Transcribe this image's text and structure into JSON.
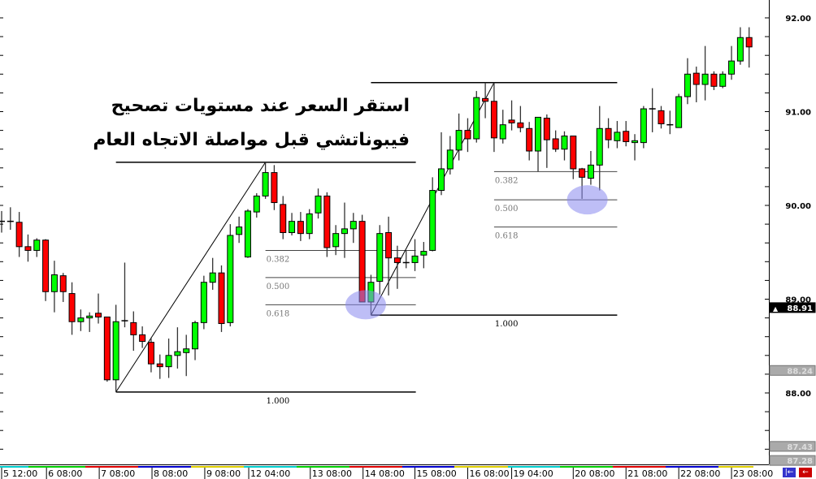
{
  "annotation": {
    "line1": "استقر السعر عند مستويات تصحيح",
    "line2": "فيبوناتشي قبل مواصلة الاتجاه العام"
  },
  "colors": {
    "bull": "#00ff00",
    "bear": "#ff0000",
    "highlight": "#8888ee",
    "day_separators": [
      "#00cccc",
      "#00cc00",
      "#dd0000",
      "#0000cc",
      "#ddcc00"
    ]
  },
  "buttons": [
    {
      "name": "scroll-left-button",
      "icon": "arrow-left-bar-icon",
      "color": "#3333cc"
    },
    {
      "name": "scroll-end-button",
      "icon": "arrow-left-icon",
      "color": "#cc0000"
    }
  ],
  "chart_data": {
    "type": "candlestick",
    "ohlc_order": [
      "open",
      "high",
      "low",
      "close"
    ],
    "candles": [
      [
        89.83,
        89.94,
        89.71,
        89.83
      ],
      [
        89.83,
        89.98,
        89.74,
        89.83
      ],
      [
        89.82,
        89.93,
        89.45,
        89.56
      ],
      [
        89.56,
        89.69,
        89.4,
        89.52
      ],
      [
        89.52,
        89.65,
        89.45,
        89.63
      ],
      [
        89.63,
        89.64,
        88.98,
        89.08
      ],
      [
        89.08,
        89.41,
        88.86,
        89.26
      ],
      [
        89.25,
        89.28,
        88.97,
        89.08
      ],
      [
        89.06,
        89.18,
        88.62,
        88.76
      ],
      [
        88.76,
        88.89,
        88.66,
        88.8
      ],
      [
        88.8,
        88.86,
        88.65,
        88.82
      ],
      [
        88.85,
        89.06,
        88.74,
        88.81
      ],
      [
        88.81,
        88.81,
        88.12,
        88.14
      ],
      [
        88.14,
        88.94,
        88.01,
        88.76
      ],
      [
        88.77,
        89.39,
        88.7,
        88.77
      ],
      [
        88.75,
        88.87,
        88.45,
        88.62
      ],
      [
        88.62,
        88.71,
        88.48,
        88.55
      ],
      [
        88.54,
        88.59,
        88.22,
        88.31
      ],
      [
        88.31,
        88.41,
        88.15,
        88.28
      ],
      [
        88.28,
        88.58,
        88.16,
        88.4
      ],
      [
        88.4,
        88.7,
        88.26,
        88.44
      ],
      [
        88.43,
        88.62,
        88.18,
        88.47
      ],
      [
        88.47,
        88.77,
        88.35,
        88.75
      ],
      [
        88.75,
        89.25,
        88.68,
        89.18
      ],
      [
        89.18,
        89.44,
        89.1,
        89.28
      ],
      [
        89.28,
        89.36,
        88.65,
        88.74
      ],
      [
        88.75,
        89.8,
        88.71,
        89.68
      ],
      [
        89.69,
        89.88,
        89.6,
        89.77
      ],
      [
        89.45,
        89.96,
        89.44,
        89.94
      ],
      [
        89.93,
        90.13,
        89.87,
        90.1
      ],
      [
        90.1,
        90.46,
        90.07,
        90.35
      ],
      [
        90.35,
        90.43,
        89.95,
        90.03
      ],
      [
        90.01,
        90.1,
        89.64,
        89.71
      ],
      [
        89.71,
        89.92,
        89.68,
        89.83
      ],
      [
        89.83,
        89.93,
        89.62,
        89.7
      ],
      [
        89.7,
        89.96,
        89.64,
        89.91
      ],
      [
        89.92,
        90.18,
        89.86,
        90.1
      ],
      [
        90.1,
        90.14,
        89.45,
        89.55
      ],
      [
        89.56,
        89.79,
        89.47,
        89.7
      ],
      [
        89.7,
        90.03,
        89.44,
        89.75
      ],
      [
        89.75,
        89.92,
        89.6,
        89.83
      ],
      [
        89.83,
        89.9,
        88.97,
        88.97
      ],
      [
        88.97,
        89.26,
        88.83,
        89.18
      ],
      [
        89.19,
        89.79,
        89.05,
        89.7
      ],
      [
        89.71,
        89.88,
        89.04,
        89.44
      ],
      [
        89.44,
        89.57,
        89.11,
        89.39
      ],
      [
        89.39,
        89.52,
        89.33,
        89.39
      ],
      [
        89.39,
        89.64,
        89.3,
        89.46
      ],
      [
        89.47,
        89.61,
        89.33,
        89.51
      ],
      [
        89.52,
        90.3,
        89.51,
        90.16
      ],
      [
        90.16,
        90.78,
        90.11,
        90.39
      ],
      [
        90.39,
        90.74,
        90.33,
        90.59
      ],
      [
        90.59,
        90.98,
        90.48,
        90.8
      ],
      [
        90.8,
        90.93,
        90.57,
        90.71
      ],
      [
        90.71,
        91.22,
        90.67,
        91.15
      ],
      [
        91.14,
        91.31,
        90.93,
        91.11
      ],
      [
        91.11,
        91.31,
        90.57,
        90.72
      ],
      [
        90.71,
        91.02,
        90.66,
        90.86
      ],
      [
        90.91,
        91.12,
        90.8,
        90.88
      ],
      [
        90.88,
        91.06,
        90.78,
        90.83
      ],
      [
        90.82,
        90.89,
        90.48,
        90.58
      ],
      [
        90.58,
        90.94,
        90.36,
        90.94
      ],
      [
        90.93,
        90.97,
        90.4,
        90.7
      ],
      [
        90.71,
        90.8,
        90.57,
        90.6
      ],
      [
        90.6,
        90.79,
        90.48,
        90.74
      ],
      [
        90.74,
        90.74,
        90.28,
        90.39
      ],
      [
        90.39,
        90.4,
        90.07,
        90.3
      ],
      [
        90.29,
        90.58,
        90.22,
        90.43
      ],
      [
        90.43,
        91.06,
        90.16,
        90.82
      ],
      [
        90.82,
        90.93,
        90.61,
        90.7
      ],
      [
        90.69,
        90.9,
        90.61,
        90.78
      ],
      [
        90.79,
        90.9,
        90.63,
        90.68
      ],
      [
        90.67,
        90.76,
        90.48,
        90.69
      ],
      [
        90.67,
        91.06,
        90.61,
        91.03
      ],
      [
        91.03,
        91.25,
        90.78,
        91.03
      ],
      [
        91.01,
        91.06,
        90.82,
        90.87
      ],
      [
        90.86,
        91.01,
        90.76,
        90.86
      ],
      [
        90.83,
        91.19,
        90.83,
        91.16
      ],
      [
        91.16,
        91.57,
        91.08,
        91.4
      ],
      [
        91.41,
        91.48,
        91.1,
        91.29
      ],
      [
        91.29,
        91.7,
        91.12,
        91.4
      ],
      [
        91.4,
        91.43,
        91.23,
        91.27
      ],
      [
        91.27,
        91.43,
        91.25,
        91.4
      ],
      [
        91.4,
        91.7,
        91.34,
        91.54
      ],
      [
        91.54,
        91.9,
        91.5,
        91.79
      ],
      [
        91.79,
        91.9,
        91.47,
        91.69
      ]
    ],
    "x_tick_labels": [
      {
        "label": "5 12:00",
        "candle": 0
      },
      {
        "label": "6 08:00",
        "candle": 5.1
      },
      {
        "label": "7 08:00",
        "candle": 11.1
      },
      {
        "label": "8 08:00",
        "candle": 17.1
      },
      {
        "label": "9 08:00",
        "candle": 23.1
      },
      {
        "label": "12 04:00",
        "candle": 28.1
      },
      {
        "label": "13 08:00",
        "candle": 35.1
      },
      {
        "label": "14 08:00",
        "candle": 41.1
      },
      {
        "label": "15 08:00",
        "candle": 47
      },
      {
        "label": "16 08:00",
        "candle": 53
      },
      {
        "label": "19 04:00",
        "candle": 58
      },
      {
        "label": "20 08:00",
        "candle": 65
      },
      {
        "label": "21 08:00",
        "candle": 71
      },
      {
        "label": "22 08:00",
        "candle": 77
      },
      {
        "label": "23 08:00",
        "candle": 83
      }
    ],
    "y_tick_labels": [
      "92.00",
      "91.00",
      "90.00",
      "89.00",
      "88.00"
    ],
    "y_ticks": [
      92,
      91,
      90,
      89,
      88
    ],
    "ylim": [
      87.26,
      92.19
    ],
    "price_tags": [
      {
        "label": "88.91",
        "value": 88.91,
        "style": "current"
      },
      {
        "label": "88.24",
        "value": 88.24,
        "style": "gray"
      },
      {
        "label": "87.43",
        "value": 87.43,
        "style": "gray"
      },
      {
        "label": "87.28",
        "value": 87.28,
        "style": "gray"
      }
    ],
    "fibonacci": [
      {
        "low": {
          "candle": 13,
          "price": 88.01
        },
        "high": {
          "candle": 30,
          "price": 90.46
        },
        "end_candle": 47.1,
        "levels": [
          {
            "label": "0.382",
            "price": 89.52
          },
          {
            "label": "0.500",
            "price": 89.23
          },
          {
            "label": "0.618",
            "price": 88.94
          },
          {
            "label": "1.000",
            "price": 88.01
          }
        ]
      },
      {
        "low": {
          "candle": 42,
          "price": 88.83
        },
        "high": {
          "candle": 56,
          "price": 91.31
        },
        "end_candle": 70,
        "levels": [
          {
            "label": "0.382",
            "price": 90.36
          },
          {
            "label": "0.500",
            "price": 90.06
          },
          {
            "label": "0.618",
            "price": 89.77
          },
          {
            "label": "1.000",
            "price": 88.83
          }
        ]
      }
    ],
    "highlights": [
      {
        "candle": 41.4,
        "price": 88.94
      },
      {
        "candle": 66.6,
        "price": 90.06
      }
    ],
    "grid": false
  }
}
